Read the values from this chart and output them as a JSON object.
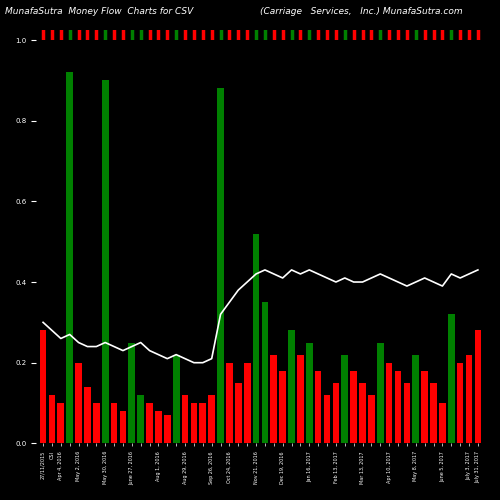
{
  "n_bars": 50,
  "bar_colors": [
    "red",
    "red",
    "red",
    "green",
    "red",
    "red",
    "red",
    "green",
    "red",
    "red",
    "green",
    "green",
    "red",
    "red",
    "red",
    "green",
    "red",
    "red",
    "red",
    "red",
    "green",
    "red",
    "red",
    "red",
    "green",
    "green",
    "red",
    "red",
    "green",
    "red",
    "green",
    "red",
    "red",
    "red",
    "green",
    "red",
    "red",
    "red",
    "green",
    "red",
    "red",
    "red",
    "green",
    "red",
    "red",
    "red",
    "green",
    "red",
    "red",
    "red"
  ],
  "bar_heights": [
    0.28,
    0.12,
    0.1,
    0.92,
    0.2,
    0.14,
    0.1,
    0.9,
    0.1,
    0.08,
    0.25,
    0.12,
    0.1,
    0.08,
    0.07,
    0.22,
    0.12,
    0.1,
    0.1,
    0.12,
    0.88,
    0.2,
    0.15,
    0.2,
    0.52,
    0.35,
    0.22,
    0.18,
    0.28,
    0.22,
    0.25,
    0.18,
    0.12,
    0.15,
    0.22,
    0.18,
    0.15,
    0.12,
    0.25,
    0.2,
    0.18,
    0.15,
    0.22,
    0.18,
    0.15,
    0.1,
    0.32,
    0.2,
    0.22,
    0.28
  ],
  "line_values": [
    0.3,
    0.28,
    0.26,
    0.27,
    0.25,
    0.24,
    0.24,
    0.25,
    0.24,
    0.23,
    0.24,
    0.25,
    0.23,
    0.22,
    0.21,
    0.22,
    0.21,
    0.2,
    0.2,
    0.21,
    0.32,
    0.35,
    0.38,
    0.4,
    0.42,
    0.43,
    0.42,
    0.41,
    0.43,
    0.42,
    0.43,
    0.42,
    0.41,
    0.4,
    0.41,
    0.4,
    0.4,
    0.41,
    0.42,
    0.41,
    0.4,
    0.39,
    0.4,
    0.41,
    0.4,
    0.39,
    0.42,
    0.41,
    0.42,
    0.43
  ],
  "xlabels": [
    "27/11/2015",
    "CSI",
    "Apr 4, 2016",
    "",
    "May 2, 2016",
    "",
    "",
    "May 30, 2016",
    "",
    "",
    "June 27, 2016",
    "",
    "",
    "Aug 1, 2016",
    "",
    "",
    "Aug 29, 2016",
    "",
    "",
    "Sep 26, 2016",
    "",
    "Oct 24, 2016",
    "",
    "",
    "Nov 21, 2016",
    "",
    "",
    "Dec 19, 2016",
    "",
    "",
    "Jan 16, 2017",
    "",
    "",
    "Feb 13, 2017",
    "",
    "",
    "Mar 13, 2017",
    "",
    "",
    "Apr 10, 2017",
    "",
    "",
    "May 8, 2017",
    "",
    "",
    "June 5, 2017",
    "",
    "",
    "July 3, 2017",
    "July 31, 2017"
  ],
  "title_left": "MunafaSutra  Money Flow  Charts for CSV",
  "title_right": "(Carriage   Services,   Inc.) MunafaSutra.com",
  "bg_color": "#000000",
  "line_color": "#ffffff",
  "title_color": "#ffffff",
  "title_fontsize": 6.5,
  "bar_width": 0.75,
  "ylim": [
    0,
    1.0
  ],
  "xtick_fontsize": 3.5,
  "ytick_fontsize": 5.0,
  "line_width": 1.2
}
